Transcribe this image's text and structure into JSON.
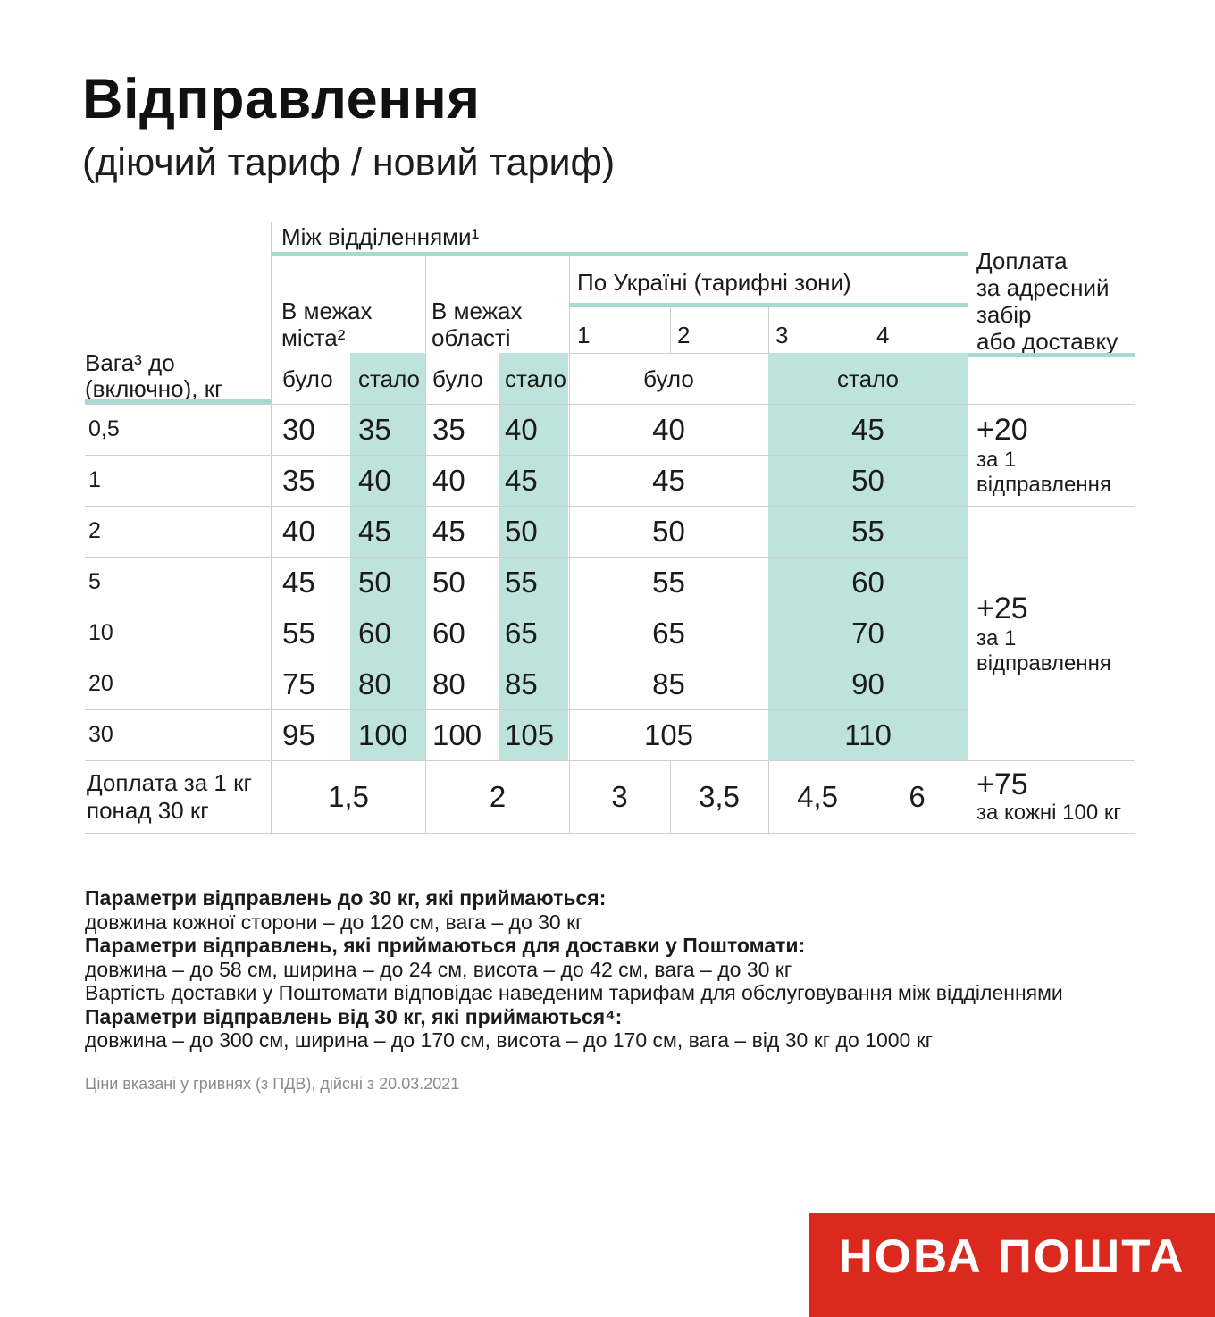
{
  "title": "Відправлення",
  "subtitle": "(діючий тариф / новий тариф)",
  "table": {
    "between_branches": "Між відділеннями¹",
    "within_city": "В межах\nміста²",
    "within_region": "В межах\nобласті",
    "ukraine_zones": "По Україні (тарифні зони)",
    "zones": [
      "1",
      "2",
      "3",
      "4"
    ],
    "weight_header": "Вага³ до\n(включно), кг",
    "was_label": "було",
    "now_label": "стало",
    "surcharge_header": "Доплата\nза адресний\nзабір\nабо доставку",
    "rows": [
      {
        "weight": "0,5",
        "city_was": "30",
        "city_now": "35",
        "region_was": "35",
        "region_now": "40",
        "ua_was": "40",
        "ua_now": "45"
      },
      {
        "weight": "1",
        "city_was": "35",
        "city_now": "40",
        "region_was": "40",
        "region_now": "45",
        "ua_was": "45",
        "ua_now": "50"
      },
      {
        "weight": "2",
        "city_was": "40",
        "city_now": "45",
        "region_was": "45",
        "region_now": "50",
        "ua_was": "50",
        "ua_now": "55"
      },
      {
        "weight": "5",
        "city_was": "45",
        "city_now": "50",
        "region_was": "50",
        "region_now": "55",
        "ua_was": "55",
        "ua_now": "60"
      },
      {
        "weight": "10",
        "city_was": "55",
        "city_now": "60",
        "region_was": "60",
        "region_now": "65",
        "ua_was": "65",
        "ua_now": "70"
      },
      {
        "weight": "20",
        "city_was": "75",
        "city_now": "80",
        "region_was": "80",
        "region_now": "85",
        "ua_was": "85",
        "ua_now": "90"
      },
      {
        "weight": "30",
        "city_was": "95",
        "city_now": "100",
        "region_was": "100",
        "region_now": "105",
        "ua_was": "105",
        "ua_now": "110"
      }
    ],
    "over30": {
      "label": "Доплата за 1 кг\nпонад 30 кг",
      "city": "1,5",
      "region": "2",
      "zone1": "3",
      "zone2": "3,5",
      "zone3": "4,5",
      "zone4": "6"
    },
    "surcharges": [
      {
        "amount": "+20",
        "note": "за 1\nвідправлення"
      },
      {
        "amount": "+25",
        "note": "за 1\nвідправлення"
      },
      {
        "amount": "+75",
        "note": "за кожні 100 кг"
      }
    ]
  },
  "notes": [
    {
      "bold": true,
      "text": "Параметри відправлень до 30 кг, які приймаються:"
    },
    {
      "bold": false,
      "text": "довжина кожної сторони – до 120 см, вага – до 30 кг"
    },
    {
      "bold": true,
      "text": "Параметри відправлень, які приймаються для доставки у Поштомати:"
    },
    {
      "bold": false,
      "text": "довжина – до 58 см, ширина – до 24 см, висота – до 42 см, вага – до 30 кг"
    },
    {
      "bold": false,
      "text": "Вартість доставки у Поштомати відповідає наведеним тарифам для обслуговування між відділеннями"
    },
    {
      "bold": true,
      "text": "Параметри відправлень від 30 кг, які приймаються⁴:"
    },
    {
      "bold": false,
      "text": "довжина – до 300 см, ширина – до 170 см, висота – до 170 см, вага – від 30 кг до 1000 кг"
    }
  ],
  "fine_print": "Ціни вказані у гривнях (з ПДВ), дійсні з 20.03.2021",
  "logo_text": "НОВА ПОШТА",
  "colors": {
    "teal_bg": "#bde3dc",
    "teal_line": "#a6d9cf",
    "brand_red": "#dc291e",
    "grid_gray": "#cfcfcf",
    "fine_print_gray": "#8b8b8b"
  }
}
